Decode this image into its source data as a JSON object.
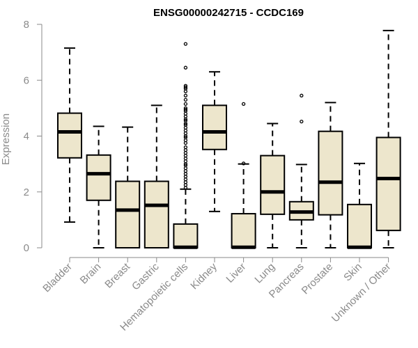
{
  "chart_data": {
    "type": "boxplot",
    "title": "ENSG00000242715 - CCDC169",
    "ylabel": "Expression",
    "xlabel": "",
    "ylim": [
      0,
      8
    ],
    "yticks": [
      0,
      2,
      4,
      6,
      8
    ],
    "grid": false,
    "box_fill": "#ede6cc",
    "categories": [
      "Bladder",
      "Brain",
      "Breast",
      "Gastric",
      "Hematopoietic cells",
      "Kidney",
      "Liver",
      "Lung",
      "Pancreas",
      "Prostate",
      "Skin",
      "Unknown / Other"
    ],
    "boxes": [
      {
        "label": "Bladder",
        "whisker_low": 0.92,
        "q1": 3.22,
        "median": 4.15,
        "q3": 4.82,
        "whisker_high": 7.15,
        "outliers": []
      },
      {
        "label": "Brain",
        "whisker_low": 0.0,
        "q1": 1.7,
        "median": 2.65,
        "q3": 3.32,
        "whisker_high": 4.35,
        "outliers": []
      },
      {
        "label": "Breast",
        "whisker_low": 0.0,
        "q1": 0.0,
        "median": 1.35,
        "q3": 2.38,
        "whisker_high": 4.32,
        "outliers": []
      },
      {
        "label": "Gastric",
        "whisker_low": 0.0,
        "q1": 0.0,
        "median": 1.52,
        "q3": 2.38,
        "whisker_high": 5.1,
        "outliers": []
      },
      {
        "label": "Hematopoietic cells",
        "whisker_low": 0.0,
        "q1": 0.0,
        "median": 0.02,
        "q3": 0.85,
        "whisker_high": 2.1,
        "outliers": [
          7.3,
          6.45,
          5.8,
          5.75,
          5.7,
          5.6,
          5.45,
          5.3,
          5.15,
          5.0,
          4.95,
          4.9,
          4.8,
          4.7,
          4.6,
          4.55,
          4.45,
          4.4,
          4.3,
          4.2,
          4.1,
          4.0,
          3.95,
          3.85,
          3.75,
          3.6,
          3.5,
          3.4,
          3.3,
          3.2,
          3.1,
          3.0,
          2.95,
          2.85,
          2.75,
          2.65,
          2.55,
          2.45,
          2.35,
          2.25,
          2.15
        ]
      },
      {
        "label": "Kidney",
        "whisker_low": 1.3,
        "q1": 3.52,
        "median": 4.15,
        "q3": 5.1,
        "whisker_high": 6.3,
        "outliers": []
      },
      {
        "label": "Liver",
        "whisker_low": 0.0,
        "q1": 0.0,
        "median": 0.02,
        "q3": 1.22,
        "whisker_high": 3.0,
        "outliers": [
          5.15,
          3.02
        ]
      },
      {
        "label": "Lung",
        "whisker_low": 0.0,
        "q1": 1.2,
        "median": 2.0,
        "q3": 3.3,
        "whisker_high": 4.45,
        "outliers": []
      },
      {
        "label": "Pancreas",
        "whisker_low": 0.0,
        "q1": 1.0,
        "median": 1.28,
        "q3": 1.65,
        "whisker_high": 2.98,
        "outliers": [
          5.45,
          4.52
        ]
      },
      {
        "label": "Prostate",
        "whisker_low": 0.0,
        "q1": 1.18,
        "median": 2.35,
        "q3": 4.17,
        "whisker_high": 5.2,
        "outliers": []
      },
      {
        "label": "Skin",
        "whisker_low": 0.0,
        "q1": 0.0,
        "median": 0.02,
        "q3": 1.55,
        "whisker_high": 3.02,
        "outliers": []
      },
      {
        "label": "Unknown / Other",
        "whisker_low": 0.0,
        "q1": 0.62,
        "median": 2.48,
        "q3": 3.95,
        "whisker_high": 7.78,
        "outliers": []
      }
    ]
  }
}
